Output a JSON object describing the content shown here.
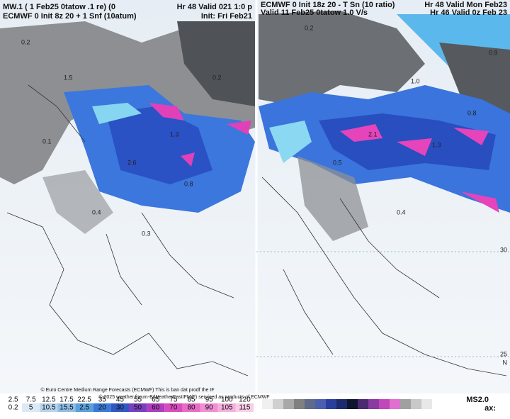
{
  "left_panel": {
    "header_lines": [
      "MW.1 ( 1 Feb25 0tatow .1 re) (0",
      "ECMWF 0 Init 8z 20 + 1 Snf (10atum)"
    ],
    "center_lines": [
      "Hr 48 Valid 021 1:0 p",
      "Init: Fri Feb21"
    ],
    "map_labels": [
      "0.2",
      "1.3",
      "0.1",
      "0.4",
      "2.6",
      "0.2",
      "0.8",
      "1.5",
      "0.3"
    ]
  },
  "right_panel": {
    "header_lines": [
      "ECMWF 0 Init 18z 20 - T Sn (10 ratio)",
      "Valid 11 Feb25 0tatow 1.0 V/s"
    ],
    "corner_lines": [
      "Hr 48 Valid Mon Feb23",
      "Hr 46 Valid 0z Feb 23"
    ],
    "map_labels": [
      "0.2",
      "1.0",
      "0.8",
      "1.3",
      "0.5",
      "2.1",
      "0.4",
      "0.9"
    ],
    "lat_labels": [
      "30",
      "25",
      "N"
    ]
  },
  "legend": {
    "row1": [
      "2.5",
      "7.5",
      "12.5",
      "17.5",
      "22.5",
      "35",
      "45",
      "55",
      "65",
      "75",
      "85",
      "95",
      "100",
      "120"
    ],
    "row2": [
      "0.2",
      "5",
      "10.5",
      "15.5",
      "2.5",
      "20",
      "30",
      "50",
      "60",
      "70",
      "80",
      "90",
      "105",
      "115"
    ],
    "credits": [
      "© Euro Centre Medium Range Forecasts (ECMWF) This is ban dat prodf the IF",
      "© 2025 weather forum-B/WeatherFastIFM/F) serviced as products of ECMWF"
    ],
    "right_labels": [
      "MS2.0",
      "ax:"
    ]
  }
}
